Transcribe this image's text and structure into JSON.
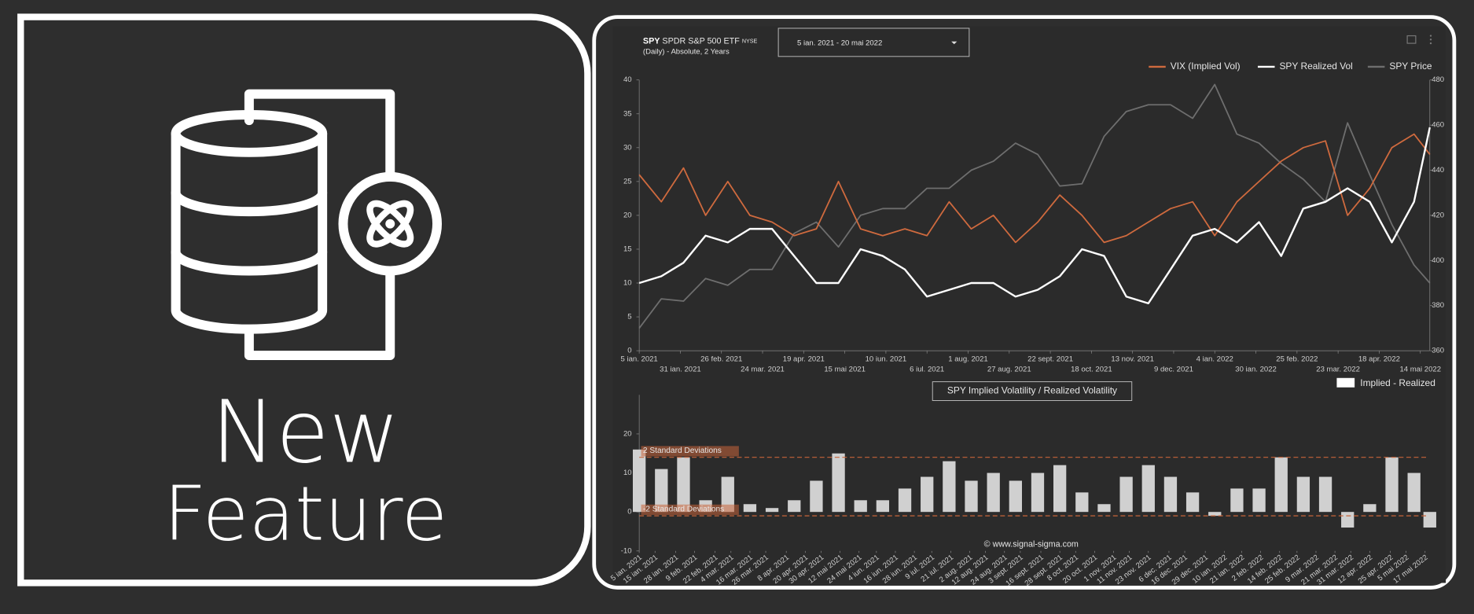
{
  "feature": {
    "line1": "New",
    "line2": "Feature"
  },
  "header": {
    "symbol": "SPY",
    "name": "SPDR S&P 500 ETF",
    "exchange": "NYSE",
    "subtitle": "(Daily) - Absolute, 2 Years",
    "range": "5 ian. 2021 - 20 mai 2022"
  },
  "chart_data": [
    {
      "type": "line",
      "x": [
        "2021-01-05",
        "2021-01-19",
        "2021-02-02",
        "2021-02-16",
        "2021-03-02",
        "2021-03-16",
        "2021-03-30",
        "2021-04-13",
        "2021-04-27",
        "2021-05-11",
        "2021-05-25",
        "2021-06-08",
        "2021-06-22",
        "2021-07-06",
        "2021-07-20",
        "2021-08-03",
        "2021-08-17",
        "2021-08-31",
        "2021-09-14",
        "2021-09-28",
        "2021-10-12",
        "2021-10-26",
        "2021-11-09",
        "2021-11-23",
        "2021-12-07",
        "2021-12-21",
        "2022-01-04",
        "2022-01-18",
        "2022-02-01",
        "2022-02-15",
        "2022-03-01",
        "2022-03-15",
        "2022-03-29",
        "2022-04-12",
        "2022-04-26",
        "2022-05-10",
        "2022-05-20"
      ],
      "xlim": [
        "2021-01-05",
        "2022-05-20"
      ],
      "xticks": [
        {
          "value": "2021-01-05",
          "label": "5 ian. 2021"
        },
        {
          "value": "2021-01-31",
          "label": "31 ian. 2021"
        },
        {
          "value": "2021-02-26",
          "label": "26 feb. 2021"
        },
        {
          "value": "2021-03-24",
          "label": "24 mar. 2021"
        },
        {
          "value": "2021-04-19",
          "label": "19 apr. 2021"
        },
        {
          "value": "2021-05-15",
          "label": "15 mai 2021"
        },
        {
          "value": "2021-06-10",
          "label": "10 iun. 2021"
        },
        {
          "value": "2021-07-06",
          "label": "6 iul. 2021"
        },
        {
          "value": "2021-08-01",
          "label": "1 aug. 2021"
        },
        {
          "value": "2021-08-27",
          "label": "27 aug. 2021"
        },
        {
          "value": "2021-09-22",
          "label": "22 sept. 2021"
        },
        {
          "value": "2021-10-18",
          "label": "18 oct. 2021"
        },
        {
          "value": "2021-11-13",
          "label": "13 nov. 2021"
        },
        {
          "value": "2021-12-09",
          "label": "9 dec. 2021"
        },
        {
          "value": "2022-01-04",
          "label": "4 ian. 2022"
        },
        {
          "value": "2022-01-30",
          "label": "30 ian. 2022"
        },
        {
          "value": "2022-02-25",
          "label": "25 feb. 2022"
        },
        {
          "value": "2022-03-23",
          "label": "23 mar. 2022"
        },
        {
          "value": "2022-04-18",
          "label": "18 apr. 2022"
        },
        {
          "value": "2022-05-14",
          "label": "14 mai 2022"
        }
      ],
      "ylim": [
        0,
        40
      ],
      "yticks": [
        0,
        5,
        10,
        15,
        20,
        25,
        30,
        35,
        40
      ],
      "y2lim": [
        360,
        480
      ],
      "y2ticks": [
        360,
        380,
        400,
        420,
        440,
        460,
        480
      ],
      "series": [
        {
          "name": "VIX (Implied Vol)",
          "color": "#cf6a3e",
          "values": [
            26,
            22,
            27,
            20,
            25,
            20,
            19,
            17,
            18,
            25,
            18,
            17,
            18,
            17,
            22,
            18,
            20,
            16,
            19,
            23,
            20,
            16,
            17,
            19,
            21,
            22,
            17,
            22,
            25,
            28,
            30,
            31,
            20,
            24,
            30,
            32,
            29
          ]
        },
        {
          "name": "SPY Realized Vol",
          "color": "#ffffff",
          "values": [
            10,
            11,
            13,
            17,
            16,
            18,
            18,
            14,
            10,
            10,
            15,
            14,
            12,
            8,
            9,
            10,
            10,
            8,
            9,
            11,
            15,
            14,
            8,
            7,
            12,
            17,
            18,
            16,
            19,
            14,
            21,
            22,
            24,
            22,
            16,
            22,
            33
          ]
        },
        {
          "name": "SPY Price",
          "color": "#6e6e6e",
          "axis": "y2",
          "values": [
            370,
            383,
            382,
            392,
            389,
            396,
            396,
            412,
            417,
            406,
            420,
            423,
            423,
            432,
            432,
            440,
            444,
            452,
            447,
            433,
            434,
            455,
            466,
            469,
            469,
            463,
            478,
            456,
            452,
            443,
            436,
            426,
            461,
            438,
            416,
            398,
            390
          ]
        }
      ]
    },
    {
      "type": "bar",
      "title": "SPY Implied Volatility / Realized Volatility",
      "x": [
        "2021-01-05",
        "2021-01-19",
        "2021-02-02",
        "2021-02-16",
        "2021-03-02",
        "2021-03-16",
        "2021-03-30",
        "2021-04-13",
        "2021-04-27",
        "2021-05-11",
        "2021-05-25",
        "2021-06-08",
        "2021-06-22",
        "2021-07-06",
        "2021-07-20",
        "2021-08-03",
        "2021-08-17",
        "2021-08-31",
        "2021-09-14",
        "2021-09-28",
        "2021-10-12",
        "2021-10-26",
        "2021-11-09",
        "2021-11-23",
        "2021-12-07",
        "2021-12-21",
        "2022-01-04",
        "2022-01-18",
        "2022-02-01",
        "2022-02-15",
        "2022-03-01",
        "2022-03-15",
        "2022-03-29",
        "2022-04-12",
        "2022-04-26",
        "2022-05-10",
        "2022-05-20"
      ],
      "xlim": [
        "2021-01-05",
        "2022-05-20"
      ],
      "xticks": [
        {
          "value": "2021-01-05",
          "label": "5 ian. 2021"
        },
        {
          "value": "2021-01-15",
          "label": "15 ian. 2021"
        },
        {
          "value": "2021-01-28",
          "label": "28 ian. 2021"
        },
        {
          "value": "2021-02-09",
          "label": "9 feb. 2021"
        },
        {
          "value": "2021-02-22",
          "label": "22 feb. 2021"
        },
        {
          "value": "2021-03-04",
          "label": "4 mar. 2021"
        },
        {
          "value": "2021-03-16",
          "label": "16 mar. 2021"
        },
        {
          "value": "2021-03-26",
          "label": "26 mar. 2021"
        },
        {
          "value": "2021-04-08",
          "label": "8 apr. 2021"
        },
        {
          "value": "2021-04-20",
          "label": "20 apr. 2021"
        },
        {
          "value": "2021-04-30",
          "label": "30 apr. 2021"
        },
        {
          "value": "2021-05-12",
          "label": "12 mai 2021"
        },
        {
          "value": "2021-05-24",
          "label": "24 mai 2021"
        },
        {
          "value": "2021-06-04",
          "label": "4 iun. 2021"
        },
        {
          "value": "2021-06-16",
          "label": "16 iun. 2021"
        },
        {
          "value": "2021-06-28",
          "label": "28 iun. 2021"
        },
        {
          "value": "2021-07-09",
          "label": "9 iul. 2021"
        },
        {
          "value": "2021-07-21",
          "label": "21 iul. 2021"
        },
        {
          "value": "2021-08-02",
          "label": "2 aug. 2021"
        },
        {
          "value": "2021-08-12",
          "label": "12 aug. 2021"
        },
        {
          "value": "2021-08-24",
          "label": "24 aug. 2021"
        },
        {
          "value": "2021-09-03",
          "label": "3 sept. 2021"
        },
        {
          "value": "2021-09-16",
          "label": "16 sept. 2021"
        },
        {
          "value": "2021-09-28",
          "label": "28 sept. 2021"
        },
        {
          "value": "2021-10-08",
          "label": "8 oct. 2021"
        },
        {
          "value": "2021-10-20",
          "label": "20 oct. 2021"
        },
        {
          "value": "2021-11-01",
          "label": "1 nov. 2021"
        },
        {
          "value": "2021-11-11",
          "label": "11 nov. 2021"
        },
        {
          "value": "2021-11-23",
          "label": "23 nov. 2021"
        },
        {
          "value": "2021-12-06",
          "label": "6 dec. 2021"
        },
        {
          "value": "2021-12-16",
          "label": "16 dec. 2021"
        },
        {
          "value": "2021-12-29",
          "label": "29 dec. 2021"
        },
        {
          "value": "2022-01-10",
          "label": "10 ian. 2022"
        },
        {
          "value": "2022-01-21",
          "label": "21 ian. 2022"
        },
        {
          "value": "2022-02-02",
          "label": "2 feb. 2022"
        },
        {
          "value": "2022-02-14",
          "label": "14 feb. 2022"
        },
        {
          "value": "2022-02-25",
          "label": "25 feb. 2022"
        },
        {
          "value": "2022-03-09",
          "label": "9 mar. 2022"
        },
        {
          "value": "2022-03-21",
          "label": "21 mar. 2022"
        },
        {
          "value": "2022-03-31",
          "label": "31 mar. 2022"
        },
        {
          "value": "2022-04-12",
          "label": "12 apr. 2022"
        },
        {
          "value": "2022-04-25",
          "label": "25 apr. 2022"
        },
        {
          "value": "2022-05-05",
          "label": "5 mai 2022"
        },
        {
          "value": "2022-05-17",
          "label": "17 mai 2022"
        }
      ],
      "ylim": [
        -10,
        30
      ],
      "yticks": [
        -10,
        0,
        10,
        20
      ],
      "series": [
        {
          "name": "Implied - Realized",
          "color": "#d0d0d0",
          "values": [
            16,
            11,
            14,
            3,
            9,
            2,
            1,
            3,
            8,
            15,
            3,
            3,
            6,
            9,
            13,
            8,
            10,
            8,
            10,
            12,
            5,
            2,
            9,
            12,
            9,
            5,
            -1,
            6,
            6,
            14,
            9,
            9,
            -4,
            2,
            14,
            10,
            -4
          ]
        }
      ],
      "bands": [
        {
          "label": "2 Standard Deviations",
          "value": 14,
          "color": "#c8643a"
        },
        {
          "label": "-2 Standard Deviations",
          "value": -1,
          "color": "#c8643a"
        }
      ],
      "watermark": "© www.signal-sigma.com"
    }
  ]
}
